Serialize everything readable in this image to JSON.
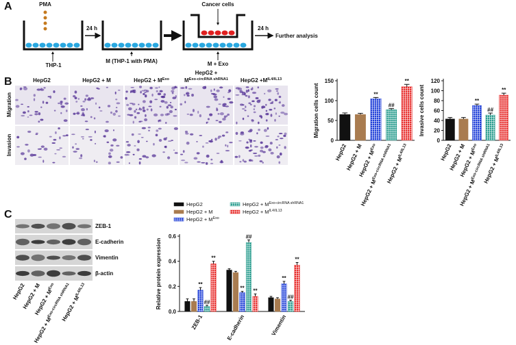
{
  "panel_labels": [
    "A",
    "B",
    "C"
  ],
  "panel_a": {
    "pma": "PMA",
    "step1": "24 h",
    "thp1": "THP-1",
    "m_label": "M (THP-1 with PMA)",
    "cancer_cells": "Cancer cells",
    "step2": "24 h",
    "m_exo": "M + Exo",
    "further": "Further analysis"
  },
  "panel_b": {
    "columns": [
      {
        "text": "HepG2"
      },
      {
        "text": "HepG2 + M"
      },
      {
        "text": "HepG2 + M",
        "sup": "Exo"
      },
      {
        "line1": "HepG2 +",
        "text": "M",
        "sup": "Exo-circRNA shRNA1"
      },
      {
        "text": "HepG2 +M",
        "sup": "IL4/IL13"
      }
    ],
    "rows": [
      "Migration",
      "Invasion"
    ]
  },
  "panel_c": {
    "blot_rows": [
      "ZEB-1",
      "E-cadherin",
      "Vimentin",
      "β-actin"
    ],
    "lanes": [
      {
        "text": "HepG2"
      },
      {
        "text": "HepG2 + M"
      },
      {
        "text": "HepG2 + M",
        "sup": "Exo"
      },
      {
        "text": "HepG2 + M",
        "sup": "Exo-circRNA shRNA1"
      },
      {
        "text": "HepG2 + M",
        "sup": "IL4/IL13"
      }
    ]
  },
  "chart_data": [
    {
      "type": "bar",
      "y_label": "Migration cells count",
      "categories": [
        "HepG2",
        "HepG2 + M",
        "HepG2 + M",
        "HepG2 + M",
        "HepG2 + M"
      ],
      "category_sup": [
        null,
        null,
        "Exo",
        "Exo-circRNA shRNA1",
        "IL4/IL13"
      ],
      "values": [
        65,
        65,
        105,
        77,
        135
      ],
      "errors": [
        4,
        3,
        3,
        3,
        6
      ],
      "annotations": [
        null,
        null,
        "**",
        "##",
        "**"
      ],
      "colors": [
        "#111111",
        "#a97c50",
        "#1f3fd8",
        "#2a9d8f",
        "#e8302f"
      ],
      "patterns": [
        null,
        null,
        "grid",
        "grid",
        "grid"
      ],
      "ylim": [
        0,
        150
      ],
      "yticks": [
        0,
        50,
        100,
        150
      ]
    },
    {
      "type": "bar",
      "y_label": "Invasive cells count",
      "categories": [
        "HepG2",
        "HepG2 + M",
        "HepG2 + M",
        "HepG2 + M",
        "HepG2 + M"
      ],
      "category_sup": [
        null,
        null,
        "Exo",
        "Exo-circRNA shRNA1",
        "IL4/IL13"
      ],
      "values": [
        43,
        43,
        70,
        51,
        91
      ],
      "errors": [
        3,
        3,
        3,
        4,
        4
      ],
      "annotations": [
        null,
        null,
        "**",
        "##",
        "**"
      ],
      "colors": [
        "#111111",
        "#a97c50",
        "#1f3fd8",
        "#2a9d8f",
        "#e8302f"
      ],
      "patterns": [
        null,
        null,
        "grid",
        "grid",
        "grid"
      ],
      "ylim": [
        0,
        120
      ],
      "yticks": [
        0,
        20,
        40,
        60,
        80,
        100,
        120
      ]
    },
    {
      "type": "grouped_bar",
      "y_label": "Relative protein expression",
      "categories": [
        "ZEB-1",
        "E-cadherin",
        "Vimentin"
      ],
      "series": [
        {
          "name": "HepG2",
          "color": "#111111",
          "values": [
            0.08,
            0.33,
            0.11
          ],
          "errors": [
            0.02,
            0.01,
            0.01
          ]
        },
        {
          "name": "HepG2 + M",
          "color": "#a97c50",
          "values": [
            0.08,
            0.31,
            0.1
          ],
          "errors": [
            0.02,
            0.01,
            0.01
          ]
        },
        {
          "name": "HepG2 + M",
          "name_sup": "Exo",
          "color": "#1f3fd8",
          "pattern": "grid",
          "values": [
            0.17,
            0.15,
            0.22
          ],
          "errors": [
            0.02,
            0.01,
            0.02
          ],
          "annotations": [
            "**",
            "**",
            "**"
          ]
        },
        {
          "name": "HepG2 + M",
          "name_sup": "Exo-circRNA shRNA1",
          "color": "#2a9d8f",
          "pattern": "grid",
          "values": [
            0.04,
            0.55,
            0.08
          ],
          "errors": [
            0.01,
            0.02,
            0.01
          ],
          "annotations": [
            "##",
            "##",
            "##"
          ]
        },
        {
          "name": "HepG2 + M",
          "name_sup": "IL4/IL13",
          "color": "#e8302f",
          "pattern": "grid",
          "values": [
            0.38,
            0.12,
            0.37
          ],
          "errors": [
            0.02,
            0.02,
            0.02
          ],
          "annotations": [
            "**",
            "**",
            "**"
          ]
        }
      ],
      "ylim": [
        0,
        0.6
      ],
      "yticks": [
        {
          "value": 0,
          "label": "0.0"
        },
        0.2,
        0.4,
        0.6
      ]
    }
  ]
}
